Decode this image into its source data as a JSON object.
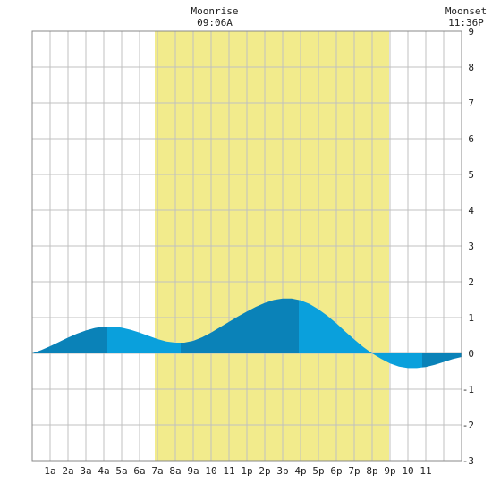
{
  "header": {
    "moonrise_label": "Moonrise",
    "moonrise_time": "09:06A",
    "moonset_label": "Moonset",
    "moonset_time": "11:36P"
  },
  "colors": {
    "daylight": "#f2eb8c",
    "tide_light": "#0aa0dc",
    "tide_dark": "#0a82b8",
    "grid": "#c0c0c0",
    "frame": "#888888"
  },
  "chart_data": {
    "type": "area",
    "x_hours": [
      0,
      0.5,
      1,
      1.5,
      2,
      2.5,
      3,
      3.5,
      4,
      4.5,
      5,
      5.5,
      6,
      6.5,
      7,
      7.5,
      8,
      8.5,
      9,
      9.5,
      10,
      10.5,
      11,
      11.5,
      12,
      12.5,
      13,
      13.5,
      14,
      14.5,
      15,
      15.5,
      16,
      16.5,
      17,
      17.5,
      18,
      18.5,
      19,
      19.5,
      20,
      20.5,
      21,
      21.5,
      22,
      22.5,
      23,
      23.5,
      24
    ],
    "tide_ft": [
      0.0,
      0.09,
      0.2,
      0.32,
      0.44,
      0.55,
      0.64,
      0.71,
      0.75,
      0.75,
      0.72,
      0.66,
      0.58,
      0.49,
      0.4,
      0.33,
      0.3,
      0.3,
      0.35,
      0.45,
      0.58,
      0.73,
      0.88,
      1.03,
      1.17,
      1.3,
      1.41,
      1.49,
      1.53,
      1.53,
      1.48,
      1.38,
      1.23,
      1.05,
      0.84,
      0.61,
      0.39,
      0.18,
      0.0,
      -0.15,
      -0.28,
      -0.37,
      -0.41,
      -0.41,
      -0.38,
      -0.32,
      -0.24,
      -0.16,
      -0.1
    ],
    "extremes": [
      {
        "type": "high",
        "hour": 4.2,
        "ft": 0.75
      },
      {
        "type": "low",
        "hour": 8.3,
        "ft": 0.3
      },
      {
        "type": "high",
        "hour": 14.9,
        "ft": 1.53
      },
      {
        "type": "low",
        "hour": 21.8,
        "ft": -0.41
      }
    ],
    "daylight_hours": [
      6.85,
      19.95
    ],
    "x_tick_labels": [
      "1a",
      "2a",
      "3a",
      "4a",
      "5a",
      "6a",
      "7a",
      "8a",
      "9a",
      "10",
      "11",
      "1p",
      "2p",
      "3p",
      "4p",
      "5p",
      "6p",
      "7p",
      "8p",
      "9p",
      "10",
      "11"
    ],
    "y_ticks": [
      -3,
      -2,
      -1,
      0,
      1,
      2,
      3,
      4,
      5,
      6,
      7,
      8,
      9
    ],
    "xlim": [
      0,
      24
    ],
    "ylim": [
      -3,
      9
    ],
    "grid": true
  }
}
